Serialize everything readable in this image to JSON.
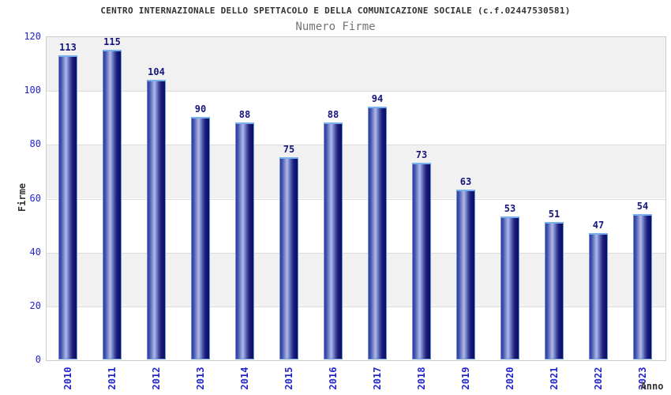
{
  "chart_data": {
    "type": "bar",
    "title": "CENTRO INTERNAZIONALE DELLO SPETTACOLO E DELLA COMUNICAZIONE SOCIALE (c.f.02447530581)",
    "subtitle": "Numero Firme",
    "categories": [
      "2010",
      "2011",
      "2012",
      "2013",
      "2014",
      "2015",
      "2016",
      "2017",
      "2018",
      "2019",
      "2020",
      "2021",
      "2022",
      "2023"
    ],
    "values": [
      113,
      115,
      104,
      90,
      88,
      75,
      88,
      94,
      73,
      63,
      53,
      51,
      47,
      54
    ],
    "xlabel": "Anno",
    "ylabel": "Firme",
    "ylim": [
      0,
      120
    ],
    "ytick_step": 20,
    "yticks": [
      0,
      20,
      40,
      60,
      80,
      100,
      120
    ],
    "grid": true,
    "legend": "none",
    "band_colors": [
      "#f1f1f1",
      "#ffffff"
    ],
    "colors": {
      "axis_tick_text": "#2424cc",
      "value_label": "#15157d",
      "title_text": "#333333",
      "subtitle_text": "#737373",
      "plot_border": "#cccccc",
      "gridline": "#dddddd",
      "bar_border": "#5f9bdc",
      "bar_dark": "#141470",
      "bar_highlight": "#aeb9e8"
    }
  }
}
